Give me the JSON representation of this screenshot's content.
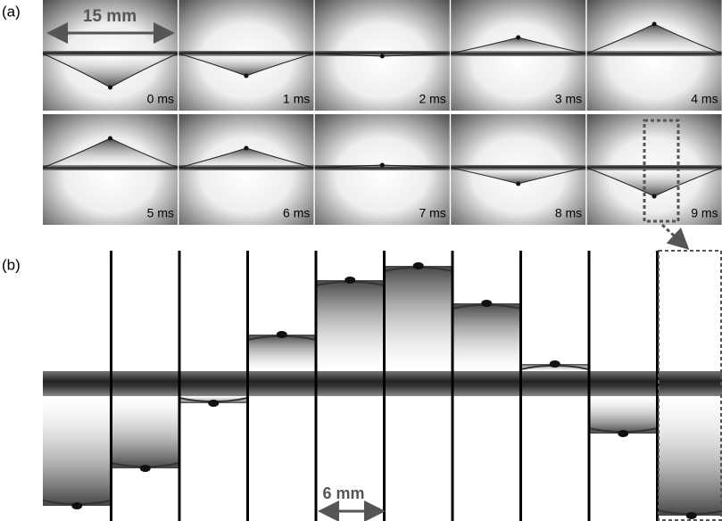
{
  "panel_a": {
    "label": "(a)",
    "scale_bar": "15 mm",
    "frames": [
      "0 ms",
      "1 ms",
      "2 ms",
      "3 ms",
      "4 ms",
      "5 ms",
      "6 ms",
      "7 ms",
      "8 ms",
      "9 ms"
    ]
  },
  "panel_b": {
    "label": "(b)",
    "scale_bar": "6 mm"
  }
}
